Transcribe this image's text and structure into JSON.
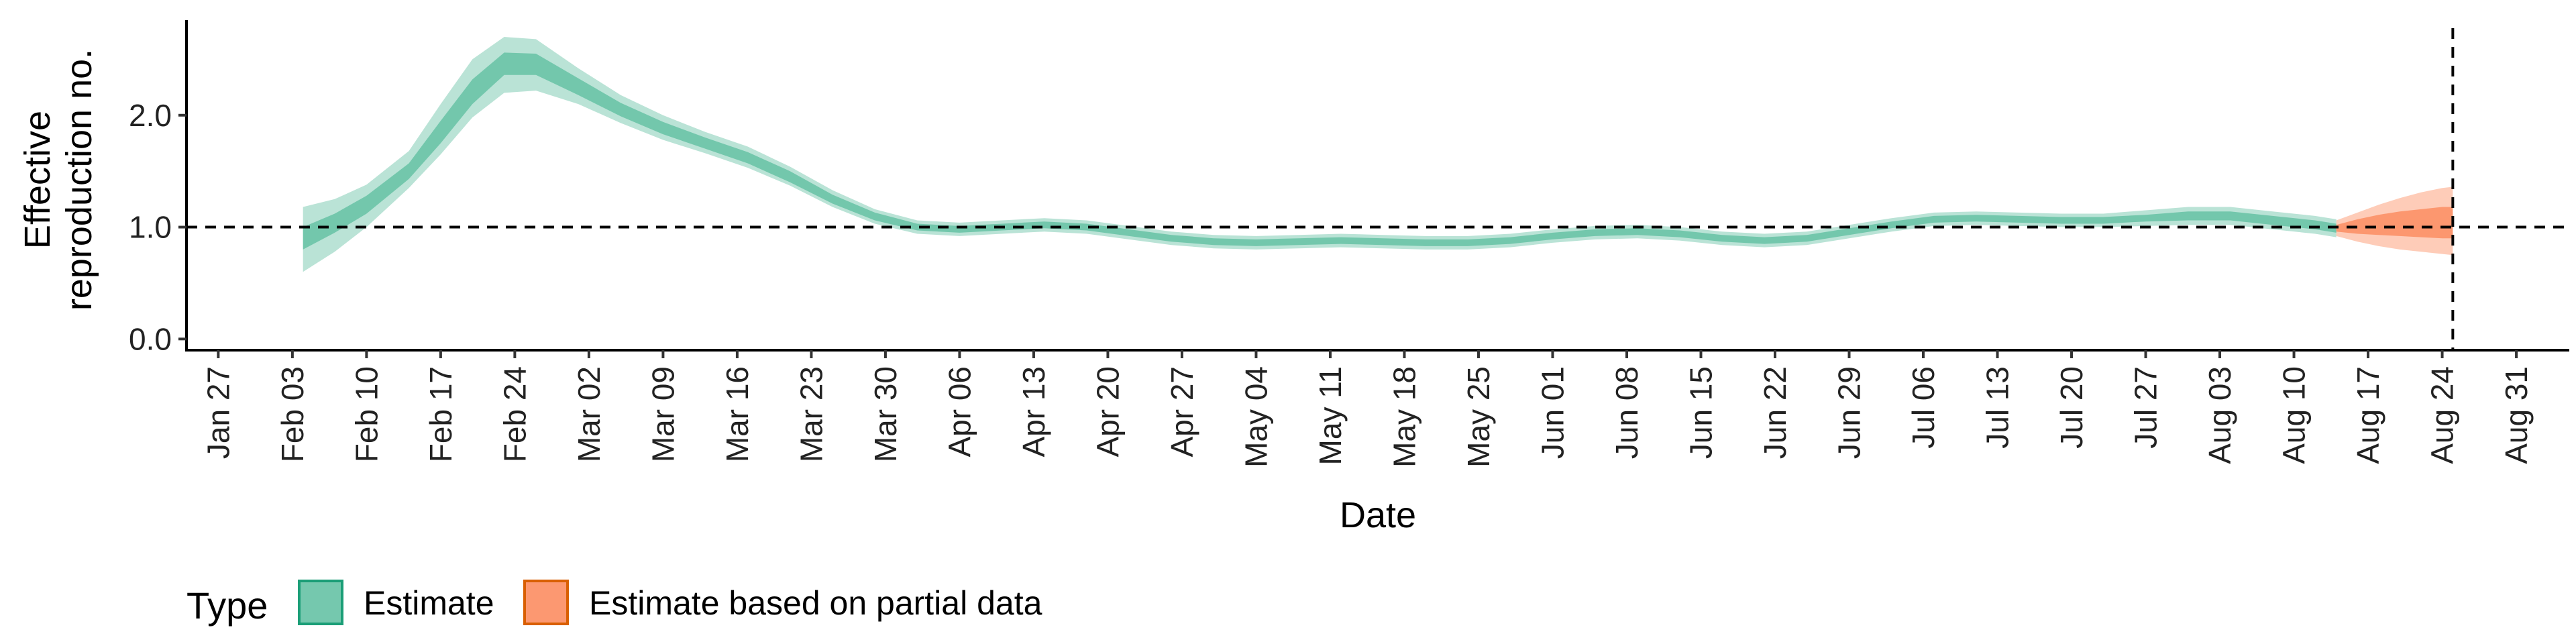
{
  "chart_data": {
    "type": "area",
    "xlabel": "Date",
    "ylabel": "Effective\nreproduction no.",
    "ylim": [
      -0.1,
      2.85
    ],
    "yticks": [
      0.0,
      1.0,
      2.0
    ],
    "ytick_labels": [
      "0.0",
      "1.0",
      "2.0"
    ],
    "xlim": [
      "2020-01-24",
      "2020-09-05"
    ],
    "xticks": [
      "2020-01-27",
      "2020-02-03",
      "2020-02-10",
      "2020-02-17",
      "2020-02-24",
      "2020-03-02",
      "2020-03-09",
      "2020-03-16",
      "2020-03-23",
      "2020-03-30",
      "2020-04-06",
      "2020-04-13",
      "2020-04-20",
      "2020-04-27",
      "2020-05-04",
      "2020-05-11",
      "2020-05-18",
      "2020-05-25",
      "2020-06-01",
      "2020-06-08",
      "2020-06-15",
      "2020-06-22",
      "2020-06-29",
      "2020-07-06",
      "2020-07-13",
      "2020-07-20",
      "2020-07-27",
      "2020-08-03",
      "2020-08-10",
      "2020-08-17",
      "2020-08-24",
      "2020-08-31"
    ],
    "xtick_labels": [
      "Jan 27",
      "Feb 03",
      "Feb 10",
      "Feb 17",
      "Feb 24",
      "Mar 02",
      "Mar 09",
      "Mar 16",
      "Mar 23",
      "Mar 30",
      "Apr 06",
      "Apr 13",
      "Apr 20",
      "Apr 27",
      "May 04",
      "May 11",
      "May 18",
      "May 25",
      "Jun 01",
      "Jun 08",
      "Jun 15",
      "Jun 22",
      "Jun 29",
      "Jul 06",
      "Jul 13",
      "Jul 20",
      "Jul 27",
      "Aug 03",
      "Aug 10",
      "Aug 17",
      "Aug 24",
      "Aug 31"
    ],
    "reference_lines": {
      "horizontal_y": 1.0,
      "vertical_date": "2020-08-25"
    },
    "grid": false,
    "legend": {
      "title": "Type",
      "position": "bottom-left"
    },
    "series": [
      {
        "name": "Estimate",
        "color": "#66c2a5",
        "dates": [
          "2020-02-04",
          "2020-02-07",
          "2020-02-10",
          "2020-02-14",
          "2020-02-17",
          "2020-02-20",
          "2020-02-23",
          "2020-02-26",
          "2020-03-01",
          "2020-03-05",
          "2020-03-09",
          "2020-03-13",
          "2020-03-17",
          "2020-03-21",
          "2020-03-25",
          "2020-03-29",
          "2020-04-02",
          "2020-04-06",
          "2020-04-10",
          "2020-04-14",
          "2020-04-18",
          "2020-04-22",
          "2020-04-26",
          "2020-04-30",
          "2020-05-04",
          "2020-05-08",
          "2020-05-12",
          "2020-05-16",
          "2020-05-20",
          "2020-05-24",
          "2020-05-28",
          "2020-06-01",
          "2020-06-05",
          "2020-06-09",
          "2020-06-13",
          "2020-06-17",
          "2020-06-21",
          "2020-06-25",
          "2020-06-29",
          "2020-07-03",
          "2020-07-07",
          "2020-07-11",
          "2020-07-15",
          "2020-07-19",
          "2020-07-23",
          "2020-07-27",
          "2020-07-31",
          "2020-08-04",
          "2020-08-08",
          "2020-08-12",
          "2020-08-14"
        ],
        "median": [
          0.9,
          1.05,
          1.2,
          1.5,
          1.85,
          2.2,
          2.45,
          2.45,
          2.25,
          2.05,
          1.88,
          1.75,
          1.62,
          1.45,
          1.25,
          1.1,
          1.0,
          0.98,
          1.0,
          1.02,
          1.0,
          0.95,
          0.9,
          0.87,
          0.86,
          0.87,
          0.88,
          0.87,
          0.86,
          0.86,
          0.88,
          0.92,
          0.95,
          0.96,
          0.94,
          0.9,
          0.88,
          0.9,
          0.96,
          1.02,
          1.07,
          1.08,
          1.07,
          1.06,
          1.06,
          1.08,
          1.1,
          1.1,
          1.06,
          1.02,
          0.99
        ],
        "ci_50": [
          [
            0.8,
            1.0
          ],
          [
            0.95,
            1.12
          ],
          [
            1.12,
            1.28
          ],
          [
            1.43,
            1.57
          ],
          [
            1.75,
            1.95
          ],
          [
            2.1,
            2.32
          ],
          [
            2.36,
            2.56
          ],
          [
            2.36,
            2.55
          ],
          [
            2.18,
            2.33
          ],
          [
            1.99,
            2.11
          ],
          [
            1.83,
            1.94
          ],
          [
            1.7,
            1.8
          ],
          [
            1.57,
            1.67
          ],
          [
            1.4,
            1.5
          ],
          [
            1.21,
            1.29
          ],
          [
            1.06,
            1.13
          ],
          [
            0.97,
            1.03
          ],
          [
            0.95,
            1.01
          ],
          [
            0.97,
            1.03
          ],
          [
            0.99,
            1.05
          ],
          [
            0.97,
            1.03
          ],
          [
            0.92,
            0.98
          ],
          [
            0.87,
            0.93
          ],
          [
            0.84,
            0.9
          ],
          [
            0.83,
            0.89
          ],
          [
            0.84,
            0.9
          ],
          [
            0.85,
            0.91
          ],
          [
            0.84,
            0.9
          ],
          [
            0.83,
            0.89
          ],
          [
            0.83,
            0.89
          ],
          [
            0.85,
            0.91
          ],
          [
            0.89,
            0.95
          ],
          [
            0.92,
            0.98
          ],
          [
            0.93,
            0.99
          ],
          [
            0.91,
            0.97
          ],
          [
            0.87,
            0.93
          ],
          [
            0.85,
            0.91
          ],
          [
            0.87,
            0.93
          ],
          [
            0.93,
            0.99
          ],
          [
            0.99,
            1.05
          ],
          [
            1.04,
            1.1
          ],
          [
            1.05,
            1.11
          ],
          [
            1.04,
            1.1
          ],
          [
            1.03,
            1.09
          ],
          [
            1.03,
            1.09
          ],
          [
            1.05,
            1.11
          ],
          [
            1.06,
            1.14
          ],
          [
            1.06,
            1.14
          ],
          [
            1.02,
            1.1
          ],
          [
            0.98,
            1.06
          ],
          [
            0.95,
            1.03
          ]
        ],
        "ci_90": [
          [
            0.6,
            1.18
          ],
          [
            0.78,
            1.25
          ],
          [
            1.0,
            1.38
          ],
          [
            1.35,
            1.68
          ],
          [
            1.65,
            2.1
          ],
          [
            1.98,
            2.5
          ],
          [
            2.2,
            2.7
          ],
          [
            2.22,
            2.68
          ],
          [
            2.1,
            2.42
          ],
          [
            1.93,
            2.18
          ],
          [
            1.78,
            2.0
          ],
          [
            1.66,
            1.85
          ],
          [
            1.53,
            1.72
          ],
          [
            1.37,
            1.54
          ],
          [
            1.18,
            1.33
          ],
          [
            1.03,
            1.16
          ],
          [
            0.94,
            1.06
          ],
          [
            0.92,
            1.04
          ],
          [
            0.94,
            1.06
          ],
          [
            0.96,
            1.08
          ],
          [
            0.94,
            1.06
          ],
          [
            0.89,
            1.01
          ],
          [
            0.84,
            0.96
          ],
          [
            0.81,
            0.93
          ],
          [
            0.8,
            0.92
          ],
          [
            0.81,
            0.93
          ],
          [
            0.82,
            0.94
          ],
          [
            0.81,
            0.93
          ],
          [
            0.8,
            0.92
          ],
          [
            0.8,
            0.92
          ],
          [
            0.82,
            0.94
          ],
          [
            0.86,
            0.98
          ],
          [
            0.89,
            1.01
          ],
          [
            0.9,
            1.02
          ],
          [
            0.88,
            1.0
          ],
          [
            0.84,
            0.96
          ],
          [
            0.82,
            0.94
          ],
          [
            0.84,
            0.96
          ],
          [
            0.9,
            1.02
          ],
          [
            0.96,
            1.08
          ],
          [
            1.01,
            1.13
          ],
          [
            1.02,
            1.14
          ],
          [
            1.01,
            1.13
          ],
          [
            1.0,
            1.12
          ],
          [
            1.0,
            1.12
          ],
          [
            1.01,
            1.15
          ],
          [
            1.02,
            1.18
          ],
          [
            1.02,
            1.18
          ],
          [
            0.98,
            1.14
          ],
          [
            0.94,
            1.1
          ],
          [
            0.91,
            1.07
          ]
        ]
      },
      {
        "name": "Estimate based on partial data",
        "color": "#fc8d62",
        "dates": [
          "2020-08-14",
          "2020-08-16",
          "2020-08-18",
          "2020-08-20",
          "2020-08-22",
          "2020-08-24",
          "2020-08-25"
        ],
        "median": [
          0.99,
          1.0,
          1.02,
          1.03,
          1.04,
          1.04,
          1.04
        ],
        "ci_50": [
          [
            0.96,
            1.02
          ],
          [
            0.94,
            1.07
          ],
          [
            0.93,
            1.11
          ],
          [
            0.92,
            1.14
          ],
          [
            0.91,
            1.16
          ],
          [
            0.9,
            1.18
          ],
          [
            0.9,
            1.18
          ]
        ],
        "ci_90": [
          [
            0.92,
            1.06
          ],
          [
            0.87,
            1.13
          ],
          [
            0.83,
            1.2
          ],
          [
            0.8,
            1.26
          ],
          [
            0.78,
            1.31
          ],
          [
            0.76,
            1.35
          ],
          [
            0.75,
            1.36
          ]
        ]
      }
    ]
  }
}
